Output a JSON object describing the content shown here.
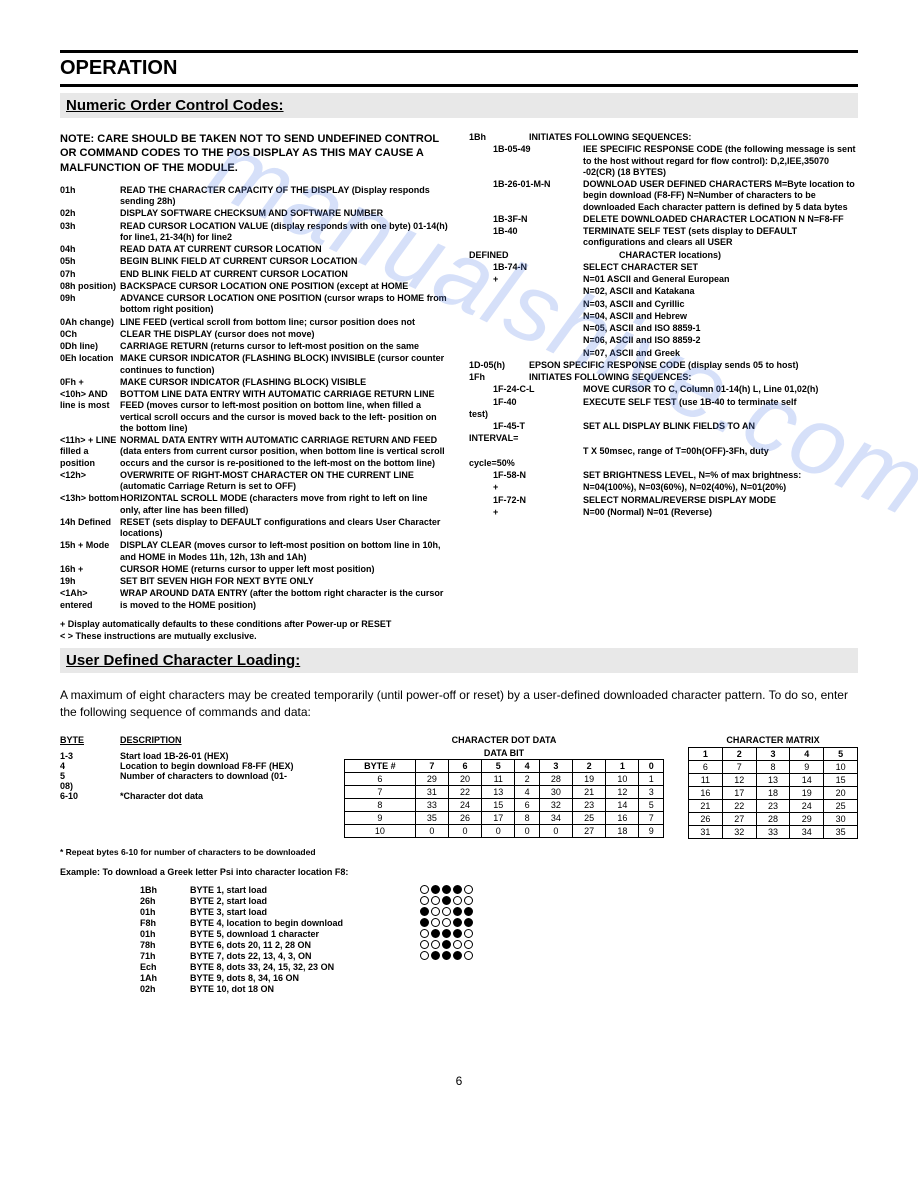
{
  "watermark": "manualshive.com",
  "headings": {
    "operation": "OPERATION",
    "numeric": "Numeric Order Control Codes:",
    "udcl": "User Defined Character Loading:"
  },
  "note": "NOTE: CARE SHOULD BE TAKEN NOT TO SEND UNDEFINED CONTROL OR COMMAND CODES TO THE POS DISPLAY AS THIS MAY CAUSE A MALFUNCTION OF THE MODULE.",
  "left_codes": [
    {
      "code": "01h",
      "desc": "READ THE CHARACTER CAPACITY OF THE DISPLAY (Display responds sending 28h)"
    },
    {
      "code": "02h",
      "desc": "DISPLAY SOFTWARE CHECKSUM AND SOFTWARE NUMBER"
    },
    {
      "code": "03h",
      "desc": "READ CURSOR LOCATION VALUE (display responds with one byte) 01-14(h) for line1, 21-34(h) for line2"
    },
    {
      "code": "04h",
      "desc": "READ DATA AT CURRENT CURSOR LOCATION"
    },
    {
      "code": "05h",
      "desc": "BEGIN BLINK FIELD AT CURRENT CURSOR LOCATION"
    },
    {
      "code": "07h",
      "desc": "END BLINK FIELD AT CURRENT CURSOR LOCATION"
    },
    {
      "code": "08h position)",
      "desc": "BACKSPACE CURSOR LOCATION ONE POSITION (except at HOME"
    },
    {
      "code": "09h",
      "desc": "ADVANCE CURSOR LOCATION ONE POSITION (cursor wraps to HOME from bottom right position)"
    },
    {
      "code": "0Ah change)",
      "desc": "LINE FEED (vertical scroll from bottom line; cursor position does not"
    },
    {
      "code": "0Ch",
      "desc": "CLEAR THE DISPLAY (cursor does not move)"
    },
    {
      "code": "0Dh line)",
      "desc": "CARRIAGE RETURN (returns cursor to left-most position on the same"
    },
    {
      "code": "0Eh location",
      "desc": "MAKE CURSOR INDICATOR (FLASHING BLOCK) INVISIBLE (cursor counter continues to function)"
    },
    {
      "code": "0Fh   +",
      "desc": "MAKE CURSOR INDICATOR (FLASHING BLOCK) VISIBLE"
    },
    {
      "code": "<10h> AND line is most",
      "desc": "BOTTOM LINE DATA ENTRY WITH AUTOMATIC CARRIAGE RETURN LINE FEED (moves cursor to left-most position on bottom line, when filled a vertical scroll occurs and the cursor is moved back to the left- position on the bottom line)"
    },
    {
      "code": "<11h> + LINE filled a position",
      "desc": "NORMAL DATA ENTRY WITH AUTOMATIC CARRIAGE RETURN AND FEED (data enters from current cursor position, when bottom line is vertical scroll occurs and the cursor is re-positioned to the left-most on the bottom line)"
    },
    {
      "code": "<12h>",
      "desc": "OVERWRITE OF RIGHT-MOST CHARACTER ON THE CURRENT LINE (automatic Carriage Return is set to OFF)"
    },
    {
      "code": "<13h> bottom",
      "desc": "HORIZONTAL SCROLL MODE (characters move from right to left on line only, after line has been filled)"
    },
    {
      "code": "14h Defined",
      "desc": "RESET (sets display to DEFAULT configurations and clears User Character locations)"
    },
    {
      "code": "15h   + Mode",
      "desc": "DISPLAY CLEAR (moves cursor to left-most position on bottom line in 10h, and HOME in Modes 11h, 12h, 13h and 1Ah)"
    },
    {
      "code": "16h   +",
      "desc": "CURSOR HOME (returns cursor to upper left most position)"
    },
    {
      "code": "19h",
      "desc": "SET BIT SEVEN HIGH FOR NEXT BYTE ONLY"
    },
    {
      "code": "<1Ah> entered",
      "desc": "WRAP AROUND DATA ENTRY (after the bottom right character is the cursor is moved to the HOME position)"
    }
  ],
  "right_header": {
    "code": "1Bh",
    "desc": "INITIATES FOLLOWING SEQUENCES:"
  },
  "right_subs": [
    {
      "sub": "1B-05-49",
      "desc": "IEE SPECIFIC RESPONSE CODE (the following message is sent to the host without regard for flow control): D,2,IEE,35070 -02(CR)  (18 BYTES)"
    },
    {
      "sub": "1B-26-01-M-N",
      "desc": "DOWNLOAD USER DEFINED CHARACTERS M=Byte location to begin download (F8-FF) N=Number of characters to be downloaded Each character pattern is defined by 5 data bytes"
    },
    {
      "sub": "1B-3F-N",
      "desc": "DELETE DOWNLOADED CHARACTER LOCATION N N=F8-FF"
    },
    {
      "sub": "1B-40",
      "desc": "TERMINATE SELF TEST (sets display to DEFAULT configurations and clears all USER"
    }
  ],
  "defined_label": "DEFINED",
  "defined_tail": "CHARACTER locations)",
  "charset_rows": [
    {
      "sub": "1B-74-N",
      "desc": "SELECT CHARACTER SET"
    },
    {
      "sub": "+",
      "desc": "N=01 ASCII and General European"
    },
    {
      "sub": "",
      "desc": "N=02, ASCII and Katakana"
    },
    {
      "sub": "",
      "desc": "N=03, ASCII and Cyrillic"
    },
    {
      "sub": "",
      "desc": "N=04, ASCII and Hebrew"
    },
    {
      "sub": "",
      "desc": "N=05, ASCII and ISO 8859-1"
    },
    {
      "sub": "",
      "desc": "N=06, ASCII and ISO 8859-2"
    },
    {
      "sub": "",
      "desc": "N=07, ASCII and Greek"
    }
  ],
  "right_codes2": [
    {
      "code": "1D-05(h)",
      "desc": "EPSON SPECIFIC RESPONSE CODE (display sends 05 to host)"
    },
    {
      "code": "1Fh",
      "desc": "INITIATES FOLLOWING SEQUENCES:"
    }
  ],
  "right_subs2": [
    {
      "sub": "1F-24-C-L",
      "desc": "MOVE CURSOR TO C, Column 01-14(h) L, Line 01,02(h)"
    },
    {
      "sub": "1F-40",
      "desc": "EXECUTE SELF TEST (use 1B-40 to terminate self"
    }
  ],
  "test_label": "test)",
  "right_subs3": [
    {
      "sub": "1F-45-T",
      "desc": "SET ALL DISPLAY BLINK FIELDS TO AN"
    }
  ],
  "interval_label": "INTERVAL=",
  "interval_desc": "T X 50msec, range of T=00h(OFF)-3Fh, duty",
  "cycle_label": "cycle=50%",
  "right_subs4": [
    {
      "sub": "1F-58-N",
      "desc": "SET BRIGHTNESS LEVEL, N=% of max brightness:"
    },
    {
      "sub": "+",
      "desc": "N=04(100%), N=03(60%), N=02(40%), N=01(20%)"
    },
    {
      "sub": "1F-72-N",
      "desc": "SELECT NORMAL/REVERSE DISPLAY MODE"
    },
    {
      "sub": "+",
      "desc": "N=00 (Normal) N=01 (Reverse)"
    }
  ],
  "footnotes": [
    "+   Display automatically defaults to these conditions after Power-up or RESET",
    "< > These instructions are mutually exclusive."
  ],
  "udcl_intro": "A maximum of eight characters may be created temporarily (until power-off or reset) by a user-defined downloaded character pattern. To do so, enter the following sequence of commands and data:",
  "byte_desc": {
    "hdr1": "BYTE",
    "hdr2": "DESCRIPTION",
    "rows": [
      {
        "b": "1-3",
        "d": "Start load 1B-26-01 (HEX)"
      },
      {
        "b": "4",
        "d": "Location to begin download F8-FF (HEX)"
      },
      {
        "b": "5",
        "d": "Number of characters to download (01-"
      },
      {
        "b": "08)",
        "d": ""
      },
      {
        "b": "6-10",
        "d": "*Character dot data"
      }
    ]
  },
  "dot_data": {
    "title": "CHARACTER DOT DATA",
    "subtitle": "DATA BIT",
    "headers": [
      "BYTE #",
      "7",
      "6",
      "5",
      "4",
      "3",
      "2",
      "1",
      "0"
    ],
    "rows": [
      [
        "6",
        "29",
        "20",
        "11",
        "2",
        "28",
        "19",
        "10",
        "1"
      ],
      [
        "7",
        "31",
        "22",
        "13",
        "4",
        "30",
        "21",
        "12",
        "3"
      ],
      [
        "8",
        "33",
        "24",
        "15",
        "6",
        "32",
        "23",
        "14",
        "5"
      ],
      [
        "9",
        "35",
        "26",
        "17",
        "8",
        "34",
        "25",
        "16",
        "7"
      ],
      [
        "10",
        "0",
        "0",
        "0",
        "0",
        "0",
        "27",
        "18",
        "9"
      ]
    ]
  },
  "matrix": {
    "title": "CHARACTER MATRIX",
    "headers": [
      "1",
      "2",
      "3",
      "4",
      "5"
    ],
    "rows": [
      [
        "6",
        "7",
        "8",
        "9",
        "10"
      ],
      [
        "11",
        "12",
        "13",
        "14",
        "15"
      ],
      [
        "16",
        "17",
        "18",
        "19",
        "20"
      ],
      [
        "21",
        "22",
        "23",
        "24",
        "25"
      ],
      [
        "26",
        "27",
        "28",
        "29",
        "30"
      ],
      [
        "31",
        "32",
        "33",
        "34",
        "35"
      ]
    ]
  },
  "repeat_note": "* Repeat bytes 6-10 for number of characters to be downloaded",
  "example_title": "Example: To download a Greek letter Psi into character location F8:",
  "example_rows": [
    {
      "hx": "1Bh",
      "dsc": "BYTE 1, start load",
      "dots": [
        0,
        1,
        1,
        1,
        0
      ]
    },
    {
      "hx": "26h",
      "dsc": "BYTE 2, start load",
      "dots": [
        0,
        0,
        1,
        0,
        0
      ]
    },
    {
      "hx": "01h",
      "dsc": "BYTE 3, start load",
      "dots": [
        1,
        0,
        0,
        1,
        1
      ]
    },
    {
      "hx": "F8h",
      "dsc": "BYTE 4, location to begin download",
      "dots": [
        1,
        0,
        0,
        1,
        1
      ]
    },
    {
      "hx": "01h",
      "dsc": "BYTE 5, download 1 character",
      "dots": [
        0,
        1,
        1,
        1,
        0
      ]
    },
    {
      "hx": "78h",
      "dsc": "BYTE 6, dots 20, 11 2, 28 ON",
      "dots": [
        0,
        0,
        1,
        0,
        0
      ]
    },
    {
      "hx": "71h",
      "dsc": "BYTE 7, dots 22, 13, 4, 3, ON",
      "dots": [
        0,
        1,
        1,
        1,
        0
      ]
    },
    {
      "hx": "Ech",
      "dsc": "BYTE 8, dots 33, 24, 15, 32, 23 ON",
      "dots": null
    },
    {
      "hx": "1Ah",
      "dsc": "BYTE 9, dots 8, 34, 16 ON",
      "dots": null
    },
    {
      "hx": "02h",
      "dsc": "BYTE 10, dot 18 ON",
      "dots": null
    }
  ],
  "page_num": "6"
}
